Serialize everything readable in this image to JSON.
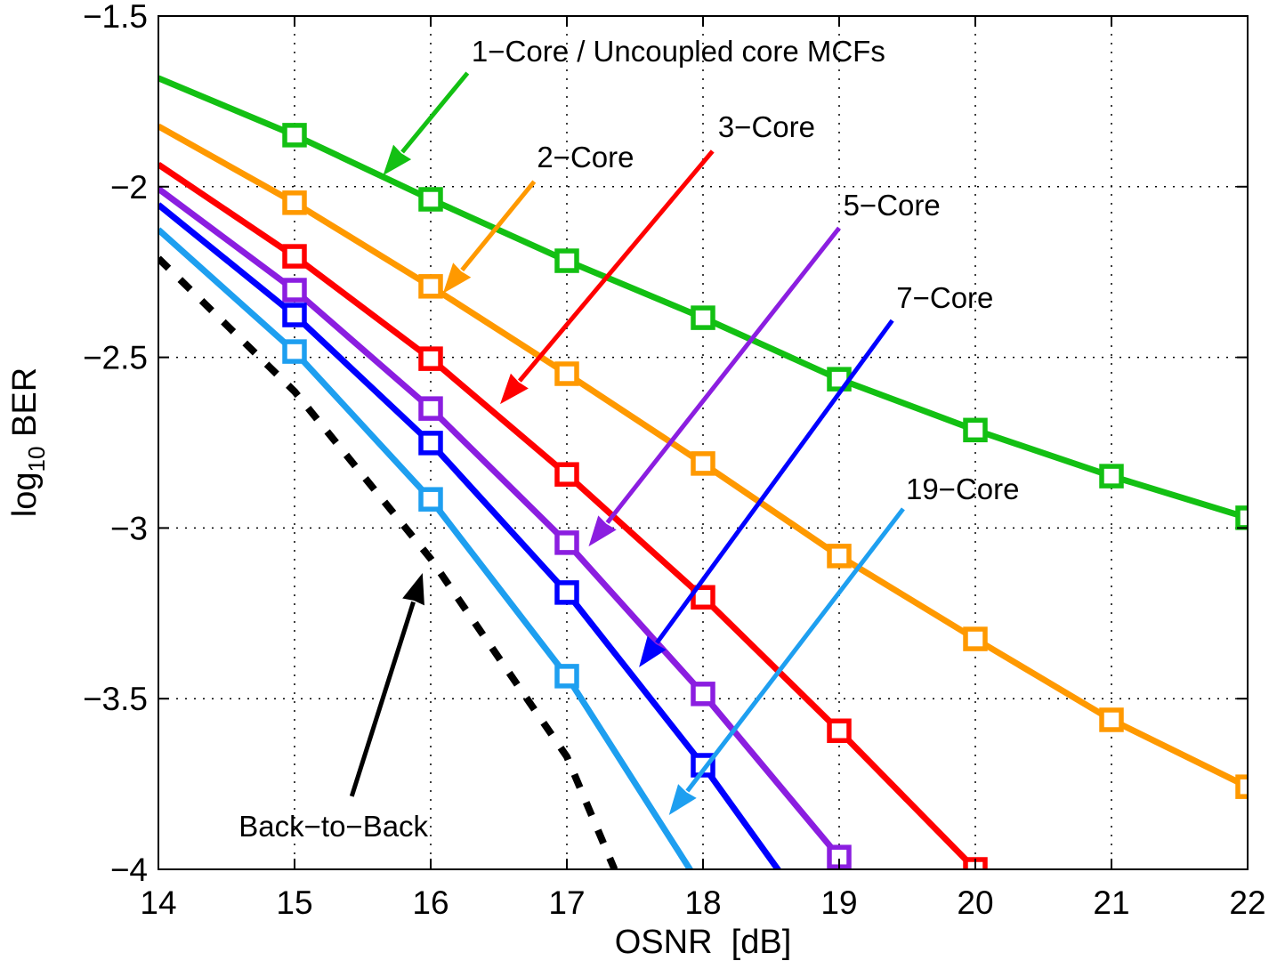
{
  "chart_data": {
    "type": "line",
    "title": "",
    "xlabel": "OSNR  [dB]",
    "ylabel": {
      "base": "log",
      "subscript": "10",
      "rest": " BER"
    },
    "xlim": [
      14,
      22
    ],
    "ylim": [
      -4,
      -1.5
    ],
    "xticks": [
      "14",
      "15",
      "16",
      "17",
      "18",
      "19",
      "20",
      "21",
      "22"
    ],
    "yticks": [
      "−1.5",
      "−2",
      "−2.5",
      "−3",
      "−3.5",
      "−4"
    ],
    "ytick_values": [
      -1.5,
      -2,
      -2.5,
      -3,
      -3.5,
      -4
    ],
    "xtick_values": [
      14,
      15,
      16,
      17,
      18,
      19,
      20,
      21,
      22
    ],
    "grid": true,
    "series": [
      {
        "key": "1-core",
        "color": "#13c013",
        "marker": "square",
        "dashed": false,
        "x": [
          14,
          15,
          16,
          17,
          18,
          19,
          20,
          21,
          22
        ],
        "y": [
          -1.682,
          -1.849,
          -2.037,
          -2.217,
          -2.384,
          -2.564,
          -2.713,
          -2.848,
          -2.97
        ],
        "markers_from": 15
      },
      {
        "key": "2-core",
        "color": "#ff9900",
        "marker": "square",
        "dashed": false,
        "x": [
          14,
          15,
          16,
          17,
          18,
          19,
          20,
          21,
          22
        ],
        "y": [
          -1.823,
          -2.047,
          -2.292,
          -2.548,
          -2.811,
          -3.082,
          -3.325,
          -3.562,
          -3.758
        ],
        "markers_from": 15
      },
      {
        "key": "3-core",
        "color": "#ff0000",
        "marker": "square",
        "dashed": false,
        "x": [
          14,
          15,
          16,
          17,
          18,
          19,
          20
        ],
        "y": [
          -1.935,
          -2.204,
          -2.504,
          -2.843,
          -3.203,
          -3.594,
          -4.0
        ],
        "markers_from": 15
      },
      {
        "key": "5-core",
        "color": "#8b1ee0",
        "marker": "square",
        "dashed": false,
        "x": [
          14,
          15,
          16,
          17,
          18,
          19
        ],
        "y": [
          -2.006,
          -2.303,
          -2.65,
          -3.043,
          -3.486,
          -3.964
        ],
        "markers_from": 15
      },
      {
        "key": "7-core",
        "color": "#0000ff",
        "marker": "square",
        "dashed": false,
        "x": [
          14,
          15,
          16,
          17,
          18,
          19
        ],
        "y": [
          -2.053,
          -2.376,
          -2.751,
          -3.189,
          -3.695,
          -4.25
        ],
        "markers_from": 15
      },
      {
        "key": "19-core",
        "color": "#1e9ff0",
        "marker": "square",
        "dashed": false,
        "x": [
          14,
          15,
          16,
          17,
          18
        ],
        "y": [
          -2.126,
          -2.483,
          -2.916,
          -3.434,
          -4.06
        ],
        "markers_from": 15
      },
      {
        "key": "back-to-back",
        "color": "#000000",
        "marker": "none",
        "dashed": true,
        "x": [
          14,
          15,
          16,
          17,
          17.35
        ],
        "y": [
          -2.21,
          -2.6,
          -3.09,
          -3.67,
          -4.0
        ],
        "markers_from": 99
      }
    ],
    "annotations": [
      {
        "text": "1−Core / Uncoupled core MCFs",
        "color": "#13c013",
        "text_at": [
          16.3,
          -1.602
        ],
        "arrow_from": [
          16.27,
          -1.667
        ],
        "arrow_to": [
          15.65,
          -1.967
        ]
      },
      {
        "text": "2−Core",
        "color": "#ff9900",
        "text_at": [
          16.78,
          -1.912
        ],
        "arrow_from": [
          16.76,
          -1.985
        ],
        "arrow_to": [
          16.09,
          -2.313
        ]
      },
      {
        "text": "3−Core",
        "color": "#ff0000",
        "text_at": [
          18.11,
          -1.823
        ],
        "arrow_from": [
          18.07,
          -1.896
        ],
        "arrow_to": [
          16.51,
          -2.637
        ]
      },
      {
        "text": "5−Core",
        "color": "#8b1ee0",
        "text_at": [
          19.03,
          -2.053
        ],
        "arrow_from": [
          19.0,
          -2.121
        ],
        "arrow_to": [
          17.16,
          -3.054
        ]
      },
      {
        "text": "7−Core",
        "color": "#0000ff",
        "text_at": [
          19.42,
          -2.324
        ],
        "arrow_from": [
          19.39,
          -2.392
        ],
        "arrow_to": [
          17.53,
          -3.408
        ]
      },
      {
        "text": "19−Core",
        "color": "#1e9ff0",
        "text_at": [
          19.49,
          -2.884
        ],
        "arrow_from": [
          19.47,
          -2.944
        ],
        "arrow_to": [
          17.75,
          -3.841
        ]
      },
      {
        "text": "Back−to−Back",
        "color": "#000000",
        "text_at": [
          14.59,
          -3.872
        ],
        "arrow_from": [
          15.42,
          -3.786
        ],
        "arrow_to": [
          15.94,
          -3.132
        ]
      }
    ]
  }
}
